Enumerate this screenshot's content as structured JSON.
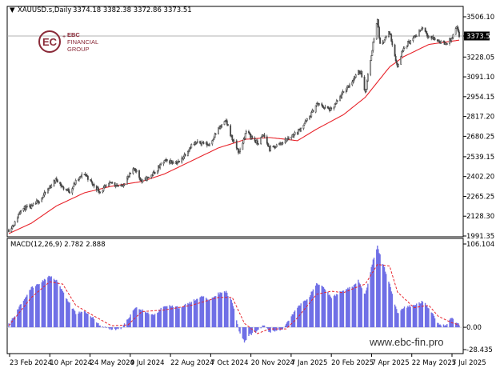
{
  "header": {
    "arrow": "▼",
    "symbol": "XAUUSD.s,Daily",
    "ohlc": "3374.18 3382.38 3372.86 3373.51"
  },
  "logo": {
    "mark": "EC",
    "line1": "EBC",
    "line2": "FINANCIAL",
    "line3": "GROUP",
    "color": "#8a2a38"
  },
  "watermark": "www.ebc-fin.pro",
  "colors": {
    "candles": "#444444",
    "ma": "#e8242b",
    "macd_hist": "#6f6fe6",
    "macd_signal": "#e8242b",
    "grid": "#d9d9d9",
    "price_tag_bg": "#000000"
  },
  "chart_data": [
    {
      "type": "candlestick",
      "title": "XAUUSD.s,Daily",
      "current_price_label": "3373.51",
      "y_ticks": [
        "3506.10",
        "3373.51",
        "3228.05",
        "3091.10",
        "2954.15",
        "2817.20",
        "2680.25",
        "2539.15",
        "2402.20",
        "2265.25",
        "2128.30",
        "1991.35"
      ],
      "ylim": [
        1991.35,
        3506.1
      ],
      "x_tick_labels": [
        "23 Feb 2024",
        "10 Apr 2024",
        "24 May 2024",
        "9 Jul 2024",
        "22 Aug 2024",
        "7 Oct 2024",
        "20 Nov 2024",
        "7 Jan 2025",
        "20 Feb 2025",
        "7 Apr 2025",
        "22 May 2025",
        "7 Jul 2025"
      ],
      "close_keypoints": [
        [
          "2024-02-23",
          2035
        ],
        [
          "2024-03-01",
          2082
        ],
        [
          "2024-03-08",
          2180
        ],
        [
          "2024-03-20",
          2190
        ],
        [
          "2024-04-01",
          2255
        ],
        [
          "2024-04-12",
          2345
        ],
        [
          "2024-04-18",
          2385
        ],
        [
          "2024-04-25",
          2325
        ],
        [
          "2024-05-03",
          2300
        ],
        [
          "2024-05-10",
          2365
        ],
        [
          "2024-05-20",
          2425
        ],
        [
          "2024-05-30",
          2345
        ],
        [
          "2024-06-07",
          2298
        ],
        [
          "2024-06-20",
          2360
        ],
        [
          "2024-07-01",
          2330
        ],
        [
          "2024-07-17",
          2460
        ],
        [
          "2024-07-25",
          2365
        ],
        [
          "2024-08-08",
          2425
        ],
        [
          "2024-08-20",
          2510
        ],
        [
          "2024-09-06",
          2500
        ],
        [
          "2024-09-20",
          2620
        ],
        [
          "2024-10-01",
          2640
        ],
        [
          "2024-10-10",
          2620
        ],
        [
          "2024-10-21",
          2730
        ],
        [
          "2024-10-30",
          2785
        ],
        [
          "2024-11-06",
          2660
        ],
        [
          "2024-11-14",
          2565
        ],
        [
          "2024-11-22",
          2715
        ],
        [
          "2024-12-05",
          2630
        ],
        [
          "2024-12-12",
          2690
        ],
        [
          "2024-12-19",
          2590
        ],
        [
          "2025-01-03",
          2640
        ],
        [
          "2025-01-20",
          2710
        ],
        [
          "2025-02-03",
          2815
        ],
        [
          "2025-02-11",
          2905
        ],
        [
          "2025-02-28",
          2860
        ],
        [
          "2025-03-14",
          2985
        ],
        [
          "2025-03-31",
          3120
        ],
        [
          "2025-04-03",
          3130
        ],
        [
          "2025-04-08",
          2980
        ],
        [
          "2025-04-17",
          3325
        ],
        [
          "2025-04-22",
          3490
        ],
        [
          "2025-04-25",
          3310
        ],
        [
          "2025-05-06",
          3400
        ],
        [
          "2025-05-15",
          3160
        ],
        [
          "2025-05-22",
          3300
        ],
        [
          "2025-06-03",
          3360
        ],
        [
          "2025-06-13",
          3435
        ],
        [
          "2025-06-20",
          3370
        ],
        [
          "2025-07-01",
          3340
        ],
        [
          "2025-07-09",
          3320
        ],
        [
          "2025-07-16",
          3350
        ],
        [
          "2025-07-22",
          3430
        ],
        [
          "2025-07-25",
          3373.51
        ]
      ],
      "series": [
        {
          "name": "MA",
          "type": "line",
          "color": "#e8242b",
          "points": [
            [
              "2024-02-23",
              2008
            ],
            [
              "2024-03-20",
              2080
            ],
            [
              "2024-04-18",
              2200
            ],
            [
              "2024-05-20",
              2290
            ],
            [
              "2024-06-20",
              2335
            ],
            [
              "2024-07-25",
              2368
            ],
            [
              "2024-08-20",
              2420
            ],
            [
              "2024-09-20",
              2510
            ],
            [
              "2024-10-21",
              2600
            ],
            [
              "2024-11-22",
              2660
            ],
            [
              "2024-12-19",
              2672
            ],
            [
              "2025-01-20",
              2650
            ],
            [
              "2025-02-11",
              2730
            ],
            [
              "2025-03-14",
              2830
            ],
            [
              "2025-04-08",
              2950
            ],
            [
              "2025-05-06",
              3160
            ],
            [
              "2025-05-22",
              3230
            ],
            [
              "2025-06-20",
              3315
            ],
            [
              "2025-07-25",
              3345
            ]
          ]
        }
      ]
    },
    {
      "type": "bar",
      "title": "MACD(12,26,9) 2.782 2.888",
      "y_ticks": [
        "106.104",
        "0.00",
        "-28.435"
      ],
      "ylim": [
        -28.435,
        106.104
      ],
      "series": [
        {
          "name": "Main",
          "type": "bar",
          "color": "#6f6fe6",
          "points": [
            [
              "2024-02-23",
              5
            ],
            [
              "2024-03-01",
              15
            ],
            [
              "2024-03-08",
              30
            ],
            [
              "2024-03-20",
              50
            ],
            [
              "2024-04-01",
              58
            ],
            [
              "2024-04-10",
              66
            ],
            [
              "2024-04-18",
              60
            ],
            [
              "2024-04-25",
              45
            ],
            [
              "2024-05-03",
              30
            ],
            [
              "2024-05-10",
              18
            ],
            [
              "2024-05-20",
              20
            ],
            [
              "2024-05-30",
              12
            ],
            [
              "2024-06-07",
              2
            ],
            [
              "2024-06-20",
              -3
            ],
            [
              "2024-07-01",
              -2
            ],
            [
              "2024-07-09",
              10
            ],
            [
              "2024-07-17",
              25
            ],
            [
              "2024-07-25",
              22
            ],
            [
              "2024-08-08",
              15
            ],
            [
              "2024-08-20",
              28
            ],
            [
              "2024-09-06",
              25
            ],
            [
              "2024-09-20",
              32
            ],
            [
              "2024-10-01",
              40
            ],
            [
              "2024-10-10",
              35
            ],
            [
              "2024-10-21",
              43
            ],
            [
              "2024-10-30",
              45
            ],
            [
              "2024-11-06",
              32
            ],
            [
              "2024-11-14",
              -5
            ],
            [
              "2024-11-20",
              -18
            ],
            [
              "2024-11-26",
              -10
            ],
            [
              "2024-12-05",
              -5
            ],
            [
              "2024-12-12",
              3
            ],
            [
              "2024-12-19",
              -6
            ],
            [
              "2025-01-03",
              -3
            ],
            [
              "2025-01-07",
              5
            ],
            [
              "2025-01-20",
              25
            ],
            [
              "2025-02-03",
              40
            ],
            [
              "2025-02-11",
              56
            ],
            [
              "2025-02-20",
              50
            ],
            [
              "2025-02-28",
              38
            ],
            [
              "2025-03-07",
              42
            ],
            [
              "2025-03-14",
              48
            ],
            [
              "2025-03-25",
              52
            ],
            [
              "2025-03-31",
              60
            ],
            [
              "2025-04-08",
              42
            ],
            [
              "2025-04-17",
              85
            ],
            [
              "2025-04-22",
              103
            ],
            [
              "2025-04-25",
              92
            ],
            [
              "2025-05-06",
              55
            ],
            [
              "2025-05-15",
              18
            ],
            [
              "2025-05-22",
              25
            ],
            [
              "2025-06-03",
              28
            ],
            [
              "2025-06-13",
              33
            ],
            [
              "2025-06-20",
              25
            ],
            [
              "2025-07-01",
              5
            ],
            [
              "2025-07-09",
              2
            ],
            [
              "2025-07-16",
              12
            ],
            [
              "2025-07-22",
              6
            ],
            [
              "2025-07-25",
              2.782
            ]
          ]
        },
        {
          "name": "Signal",
          "type": "line",
          "color": "#e8242b",
          "points": [
            [
              "2024-02-23",
              2
            ],
            [
              "2024-03-20",
              38
            ],
            [
              "2024-04-10",
              58
            ],
            [
              "2024-04-25",
              55
            ],
            [
              "2024-05-10",
              28
            ],
            [
              "2024-05-30",
              15
            ],
            [
              "2024-06-20",
              2
            ],
            [
              "2024-07-09",
              3
            ],
            [
              "2024-07-25",
              20
            ],
            [
              "2024-08-20",
              22
            ],
            [
              "2024-09-20",
              28
            ],
            [
              "2024-10-21",
              38
            ],
            [
              "2024-11-06",
              38
            ],
            [
              "2024-11-20",
              5
            ],
            [
              "2024-12-05",
              -8
            ],
            [
              "2024-12-19",
              -2
            ],
            [
              "2025-01-07",
              -2
            ],
            [
              "2025-01-20",
              12
            ],
            [
              "2025-02-11",
              42
            ],
            [
              "2025-02-28",
              46
            ],
            [
              "2025-03-14",
              44
            ],
            [
              "2025-03-31",
              52
            ],
            [
              "2025-04-08",
              55
            ],
            [
              "2025-04-22",
              80
            ],
            [
              "2025-05-06",
              78
            ],
            [
              "2025-05-15",
              45
            ],
            [
              "2025-06-03",
              25
            ],
            [
              "2025-06-20",
              28
            ],
            [
              "2025-07-01",
              14
            ],
            [
              "2025-07-16",
              6
            ],
            [
              "2025-07-25",
              2.888
            ]
          ]
        }
      ]
    }
  ]
}
